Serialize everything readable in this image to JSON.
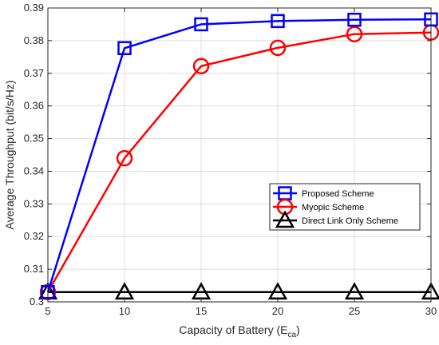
{
  "chart_data": {
    "type": "line",
    "xlabel": "Capacity of Battery (E",
    "xlabel_sub": "ca",
    "xlabel_close": ")",
    "ylabel": "Average Throughput (bit/s/Hz)",
    "x": [
      5,
      10,
      15,
      20,
      25,
      30
    ],
    "xlim": [
      5,
      30
    ],
    "ylim": [
      0.3,
      0.39
    ],
    "xticks": [
      5,
      10,
      15,
      20,
      25,
      30
    ],
    "xtick_labels": [
      "5",
      "10",
      "15",
      "20",
      "25",
      "30"
    ],
    "yticks": [
      0.3,
      0.31,
      0.32,
      0.33,
      0.34,
      0.35,
      0.36,
      0.37,
      0.38,
      0.39
    ],
    "ytick_labels": [
      "0.3",
      "0.31",
      "0.32",
      "0.33",
      "0.34",
      "0.35",
      "0.36",
      "0.37",
      "0.38",
      "0.39"
    ],
    "grid": true,
    "legend_position": "center-right",
    "series": [
      {
        "name": "Proposed Scheme",
        "values": [
          0.303,
          0.3777,
          0.385,
          0.386,
          0.3864,
          0.3865
        ],
        "color": "#0000ff",
        "marker": "square"
      },
      {
        "name": "Myopic Scheme",
        "values": [
          0.303,
          0.344,
          0.3722,
          0.3778,
          0.382,
          0.3825
        ],
        "color": "#ff0000",
        "marker": "circle"
      },
      {
        "name": "Direct Link Only Scheme",
        "values": [
          0.303,
          0.303,
          0.303,
          0.303,
          0.303,
          0.303
        ],
        "color": "#000000",
        "marker": "triangle"
      }
    ]
  }
}
